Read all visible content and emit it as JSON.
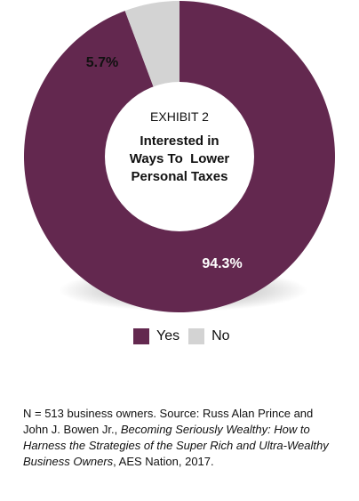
{
  "chart_data": {
    "type": "pie",
    "exhibit_label": "EXHIBIT 2",
    "title_lines": [
      "Interested in",
      "Ways To  Lower",
      "Personal Taxes"
    ],
    "slices": [
      {
        "label": "Yes",
        "value": 94.3,
        "value_label": "94.3%",
        "color": "#63284f"
      },
      {
        "label": "No",
        "value": 5.7,
        "value_label": "5.7%",
        "color": "#d3d3d3"
      }
    ],
    "legend_position": "bottom"
  },
  "source": {
    "line1": "N = 513 business owners. Source: Russ Alan Prince and",
    "line2_prefix": "John J. Bowen Jr., ",
    "line2_italic": "Becoming Seriously Wealthy: How to",
    "line3_italic": "Harness the Strategies of the Super Rich and Ultra-Wealthy",
    "line4_italic": "Business Owners",
    "line4_suffix": ", AES Nation, 2017."
  }
}
